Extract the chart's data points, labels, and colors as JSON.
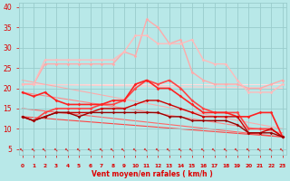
{
  "x": [
    0,
    1,
    2,
    3,
    4,
    5,
    6,
    7,
    8,
    9,
    10,
    11,
    12,
    13,
    14,
    15,
    16,
    17,
    18,
    19,
    20,
    21,
    22,
    23
  ],
  "lines": [
    {
      "y": [
        21,
        21,
        26,
        26,
        26,
        26,
        26,
        26,
        26,
        29,
        28,
        37,
        35,
        31,
        32,
        24,
        22,
        21,
        21,
        21,
        20,
        20,
        21,
        22
      ],
      "color": "#ffaaaa",
      "lw": 1.0
    },
    {
      "y": [
        21,
        21,
        27,
        27,
        27,
        27,
        27,
        27,
        27,
        29,
        33,
        33,
        31,
        31,
        31,
        32,
        27,
        26,
        26,
        22,
        19,
        19,
        19,
        21
      ],
      "color": "#ffbbbb",
      "lw": 1.0
    },
    {
      "y": [
        13,
        12,
        14,
        15,
        15,
        15,
        15,
        16,
        16,
        17,
        20,
        22,
        21,
        22,
        20,
        17,
        15,
        14,
        14,
        14,
        10,
        10,
        10,
        8
      ],
      "color": "#ff4444",
      "lw": 1.2
    },
    {
      "y": [
        19,
        18,
        19,
        17,
        16,
        16,
        16,
        16,
        17,
        17,
        21,
        22,
        20,
        20,
        18,
        16,
        14,
        14,
        14,
        13,
        13,
        14,
        14,
        8
      ],
      "color": "#ff2222",
      "lw": 1.2
    },
    {
      "y": [
        13,
        12,
        13,
        14,
        14,
        14,
        14,
        15,
        15,
        15,
        16,
        17,
        17,
        16,
        15,
        14,
        13,
        13,
        13,
        13,
        9,
        9,
        10,
        8
      ],
      "color": "#cc0000",
      "lw": 1.0
    },
    {
      "y": [
        13,
        12,
        13,
        14,
        14,
        13,
        14,
        14,
        14,
        14,
        14,
        14,
        14,
        13,
        13,
        12,
        12,
        12,
        12,
        11,
        9,
        9,
        9,
        8
      ],
      "color": "#990000",
      "lw": 1.0
    }
  ],
  "straight_lines": [
    {
      "y_start": 21,
      "y_end": 21,
      "color": "#ffcccc",
      "lw": 1.0
    },
    {
      "y_start": 22,
      "y_end": 8,
      "color": "#ffbbbb",
      "lw": 1.0
    },
    {
      "y_start": 19,
      "y_end": 8,
      "color": "#ff8888",
      "lw": 1.0
    },
    {
      "y_start": 13,
      "y_end": 8,
      "color": "#ff3333",
      "lw": 1.0
    }
  ],
  "yticks": [
    5,
    10,
    15,
    20,
    25,
    30,
    35,
    40
  ],
  "ylim": [
    3.5,
    41
  ],
  "xlim": [
    -0.3,
    23.3
  ],
  "xlabel": "Vent moyen/en rafales ( km/h )",
  "bg_color": "#b8e8e8",
  "grid_color": "#99cccc",
  "tick_color": "#dd0000",
  "label_color": "#dd0000"
}
